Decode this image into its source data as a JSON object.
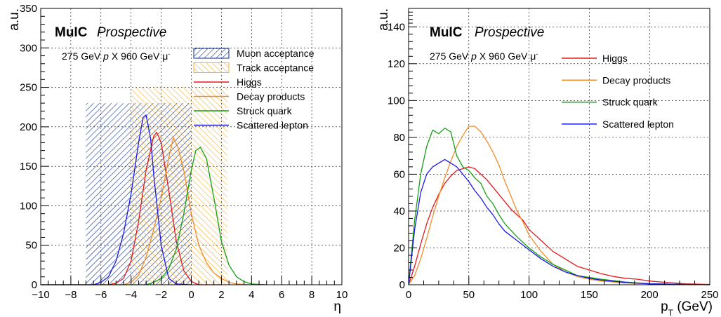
{
  "chart_data": [
    {
      "type": "line",
      "brand": "MuIC",
      "brand_subtitle": "Prospective",
      "beam_label": "275 GeV p X 960 GeV μ⁻",
      "beam_parts": [
        "275 GeV ",
        "p",
        " X 960 GeV μ",
        "-"
      ],
      "xlabel": "η",
      "ylabel": "a.u.",
      "xlim": [
        -10,
        10
      ],
      "ylim": [
        0,
        350
      ],
      "xticks": [
        "−10",
        "−8",
        "−6",
        "−4",
        "−2",
        "0",
        "2",
        "4",
        "6",
        "8",
        "10"
      ],
      "yticks": [
        "0",
        "50",
        "100",
        "150",
        "200",
        "250",
        "300",
        "350"
      ],
      "grid": true,
      "legend_position": "top-right",
      "bands": [
        {
          "name": "Muon acceptance",
          "x_range": [
            -7,
            0
          ],
          "height": 230,
          "color": "#0b2d8f"
        },
        {
          "name": "Track acceptance",
          "x_range": [
            -4,
            2.4
          ],
          "height": 250,
          "color": "#f2b233"
        }
      ],
      "series": [
        {
          "name": "Higgs",
          "color": "#e3191c",
          "x": [
            -10,
            -5.5,
            -5,
            -4.5,
            -4,
            -3.5,
            -3,
            -2.5,
            -2.3,
            -2,
            -1.5,
            -1,
            -0.5,
            0,
            0.5,
            2
          ],
          "values": [
            0,
            0,
            2,
            8,
            30,
            80,
            145,
            188,
            193,
            180,
            120,
            55,
            18,
            4,
            0,
            0
          ]
        },
        {
          "name": "Decay products",
          "color": "#f28c28",
          "x": [
            -10,
            -4.5,
            -4,
            -3.5,
            -3,
            -2.5,
            -2,
            -1.5,
            -1.2,
            -0.9,
            -0.5,
            0,
            0.5,
            1,
            1.5,
            2,
            2.5,
            3,
            4
          ],
          "values": [
            0,
            0,
            3,
            12,
            35,
            70,
            110,
            160,
            186,
            175,
            145,
            90,
            50,
            28,
            15,
            8,
            3,
            1,
            0
          ]
        },
        {
          "name": "Struck quark",
          "color": "#13a013",
          "x": [
            -10,
            -3,
            -2.5,
            -2,
            -1.5,
            -1,
            -0.5,
            0,
            0.3,
            0.6,
            1,
            1.5,
            2,
            2.5,
            3,
            3.5,
            4,
            5
          ],
          "values": [
            0,
            0,
            3,
            8,
            20,
            45,
            90,
            145,
            170,
            174,
            160,
            110,
            55,
            25,
            10,
            4,
            1,
            0
          ]
        },
        {
          "name": "Scattered lepton",
          "color": "#1a1ae6",
          "x": [
            -10,
            -6.5,
            -6,
            -5.5,
            -5,
            -4.5,
            -4,
            -3.5,
            -3.2,
            -3,
            -2.7,
            -2.5,
            -2,
            -1.5,
            -1,
            0
          ],
          "values": [
            0,
            0,
            3,
            10,
            30,
            65,
            115,
            180,
            212,
            215,
            185,
            140,
            50,
            8,
            1,
            0
          ]
        }
      ]
    },
    {
      "type": "line",
      "brand": "MuIC",
      "brand_subtitle": "Prospective",
      "beam_label": "275 GeV p X 960 GeV μ⁻",
      "beam_parts": [
        "275 GeV ",
        "p",
        " X 960 GeV μ",
        "-"
      ],
      "xlabel": "pT (GeV)",
      "xlabel_parts": [
        "p",
        "T",
        " (GeV)"
      ],
      "ylabel": "a.u.",
      "xlim": [
        0,
        250
      ],
      "ylim": [
        0,
        150
      ],
      "xticks": [
        "0",
        "50",
        "100",
        "150",
        "200",
        "250"
      ],
      "yticks": [
        "0",
        "20",
        "40",
        "60",
        "80",
        "100",
        "120",
        "140"
      ],
      "grid": true,
      "legend_position": "top-right",
      "series": [
        {
          "name": "Higgs",
          "color": "#e3191c",
          "x": [
            0,
            5,
            10,
            15,
            20,
            25,
            30,
            35,
            40,
            45,
            50,
            55,
            60,
            65,
            70,
            75,
            80,
            85,
            90,
            95,
            100,
            110,
            120,
            130,
            140,
            150,
            160,
            170,
            180,
            190,
            200,
            210,
            220,
            230,
            240,
            250
          ],
          "values": [
            0,
            10,
            22,
            33,
            42,
            49,
            55,
            59,
            62,
            63,
            64,
            63,
            60,
            57,
            53,
            49,
            45,
            41,
            38,
            35,
            30,
            24,
            18,
            14,
            10,
            8,
            6,
            4.5,
            3.5,
            3,
            2,
            1.5,
            1,
            0.5,
            0.3,
            0.2
          ]
        },
        {
          "name": "Decay products",
          "color": "#f28c28",
          "x": [
            0,
            5,
            10,
            15,
            20,
            25,
            30,
            35,
            40,
            45,
            50,
            55,
            60,
            65,
            70,
            75,
            80,
            85,
            90,
            95,
            100,
            110,
            120,
            130,
            140,
            150,
            160,
            180,
            200,
            250
          ],
          "values": [
            0,
            5,
            14,
            25,
            37,
            48,
            58,
            67,
            75,
            81,
            86,
            86,
            83,
            78,
            72,
            65,
            56,
            48,
            40,
            34,
            27,
            18,
            11,
            7,
            4.5,
            3,
            2,
            1,
            0.5,
            0
          ]
        },
        {
          "name": "Struck quark",
          "color": "#13a013",
          "x": [
            0,
            5,
            10,
            15,
            20,
            25,
            30,
            35,
            40,
            45,
            50,
            55,
            60,
            65,
            70,
            75,
            80,
            90,
            100,
            110,
            120,
            130,
            140,
            150,
            160,
            180,
            200,
            250
          ],
          "values": [
            0,
            35,
            60,
            75,
            84,
            82,
            85,
            83,
            70,
            64,
            62,
            58,
            55,
            48,
            44,
            38,
            33,
            26,
            20,
            15,
            11,
            8,
            5,
            4,
            3,
            1.5,
            0.5,
            0
          ]
        },
        {
          "name": "Scattered lepton",
          "color": "#1a1ae6",
          "x": [
            0,
            5,
            10,
            15,
            20,
            25,
            30,
            35,
            40,
            45,
            50,
            55,
            60,
            65,
            70,
            75,
            80,
            90,
            100,
            110,
            120,
            130,
            140,
            150,
            160,
            180,
            200,
            250
          ],
          "values": [
            0,
            30,
            50,
            60,
            64,
            66,
            68,
            66,
            64,
            60,
            56,
            51,
            47,
            42,
            38,
            33,
            29,
            24,
            19,
            14,
            10,
            7,
            5,
            3.5,
            2.5,
            1.2,
            0.5,
            0
          ]
        }
      ]
    }
  ]
}
